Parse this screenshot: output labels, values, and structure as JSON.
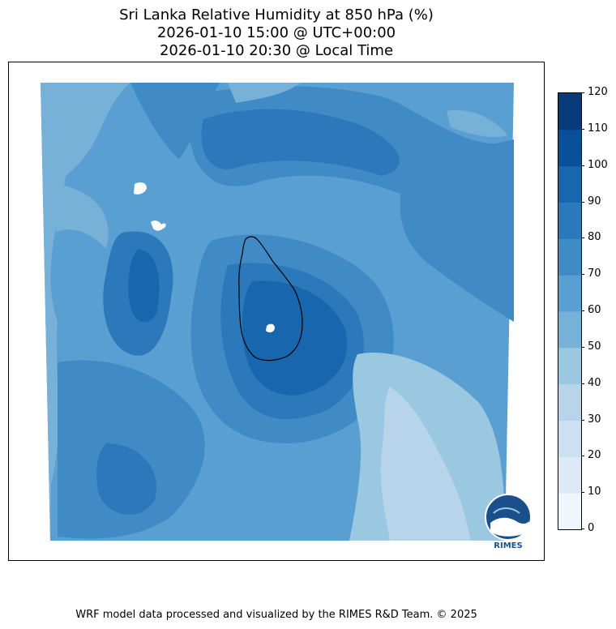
{
  "title": {
    "line1": "Sri Lanka Relative Humidity at 850 hPa (%)",
    "line2": "2026-01-10 15:00 @ UTC+00:00",
    "line3": "2026-01-10 20:30 @ Local Time"
  },
  "colorbar": {
    "ticks": [
      "0",
      "10",
      "20",
      "30",
      "40",
      "50",
      "60",
      "70",
      "80",
      "90",
      "100",
      "110",
      "120"
    ],
    "colors": [
      "#f0f6fd",
      "#dde9f6",
      "#cde0f1",
      "#b7d4ea",
      "#9ac8e0",
      "#78b1d8",
      "#5a9fd1",
      "#408ac5",
      "#2b79ba",
      "#1866ae",
      "#0a4f9a",
      "#083b7a"
    ]
  },
  "logo": {
    "text": "RIMES"
  },
  "footer": {
    "text": "WRF model data processed and visualized by the RIMES R&D Team. © 2025"
  }
}
